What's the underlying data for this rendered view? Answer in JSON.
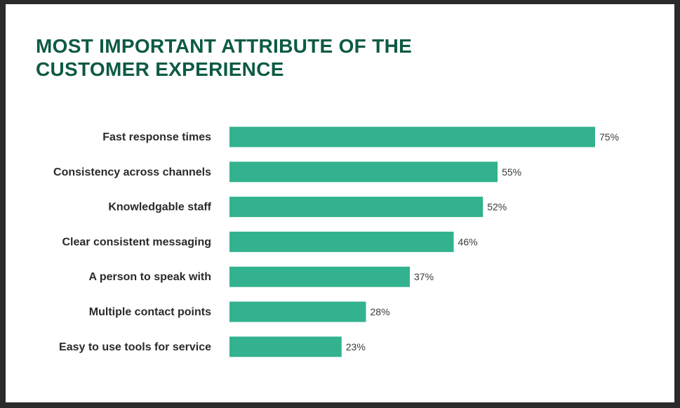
{
  "chart_data": {
    "type": "bar",
    "orientation": "horizontal",
    "title": "MOST IMPORTANT ATTRIBUTE OF THE CUSTOMER EXPERIENCE",
    "categories": [
      "Fast response times",
      "Consistency across channels",
      "Knowledgable staff",
      "Clear consistent messaging",
      "A person to speak with",
      "Multiple contact points",
      "Easy to use tools for service"
    ],
    "values": [
      75,
      55,
      52,
      46,
      37,
      28,
      23
    ],
    "value_labels": [
      "75%",
      "55%",
      "52%",
      "46%",
      "37%",
      "28%",
      "23%"
    ],
    "unit": "%",
    "xlim": [
      0,
      75
    ],
    "xlabel": "",
    "ylabel": "",
    "grid": false,
    "legend": "none"
  },
  "colors": {
    "bar": "#33b28f",
    "title": "#0d5a45",
    "background": "#ffffff",
    "frame": "#2b2b2b"
  }
}
